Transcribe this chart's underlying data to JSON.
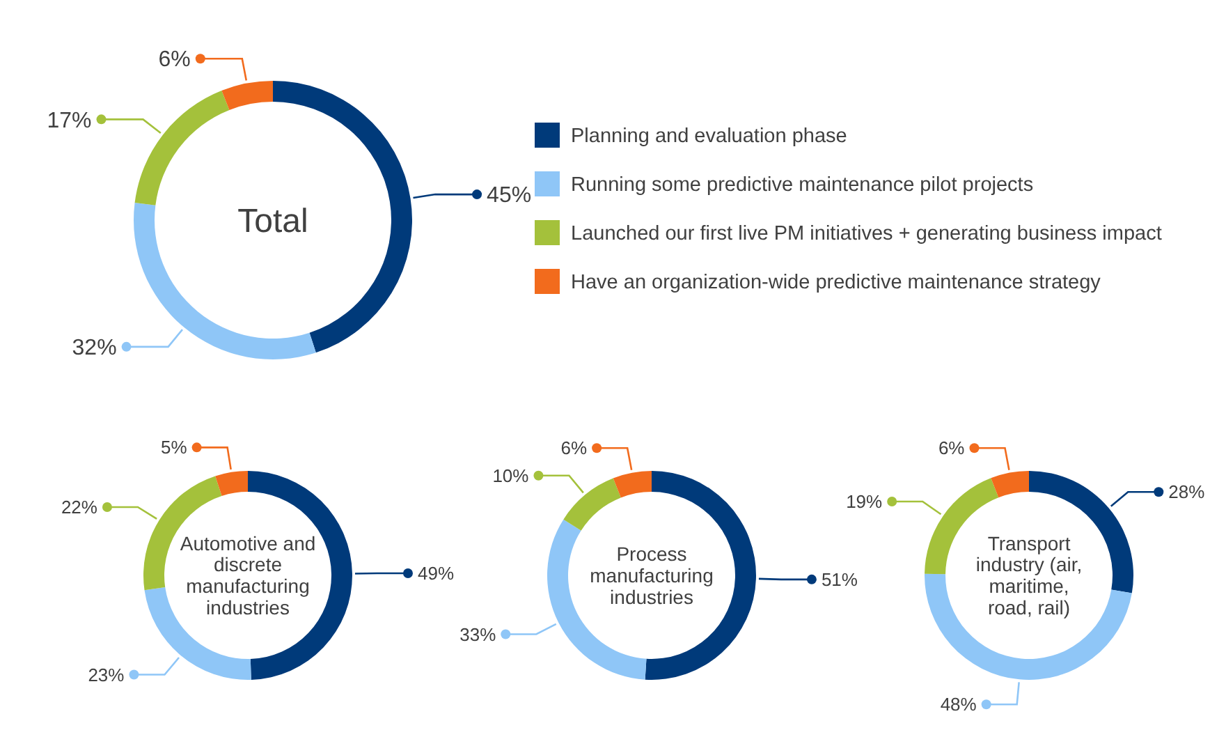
{
  "chart_data": [
    {
      "type": "donut",
      "title": "Total",
      "categories": [
        "Planning and evaluation phase",
        "Running some predictive maintenance pilot projects",
        "Launched our first live PM initiatives +  generating business impact",
        "Have an organization-wide predictive maintenance strategy"
      ],
      "values": [
        45,
        32,
        17,
        6
      ],
      "value_labels": [
        "45%",
        "32%",
        "17%",
        "6%"
      ],
      "colors": [
        "#003a7a",
        "#8fc6f7",
        "#a4c13b",
        "#f26b1d"
      ],
      "legend": "right"
    },
    {
      "type": "donut",
      "title": "Automotive and discrete manufacturing industries",
      "categories": [
        null,
        null,
        null,
        null
      ],
      "values": [
        49,
        23,
        22,
        5
      ],
      "value_labels": [
        "49%",
        "23%",
        "22%",
        "5%"
      ],
      "colors": [
        "#003a7a",
        "#8fc6f7",
        "#a4c13b",
        "#f26b1d"
      ]
    },
    {
      "type": "donut",
      "title": "Process manufacturing industries",
      "categories": [
        null,
        null,
        null,
        null
      ],
      "values": [
        51,
        33,
        10,
        6
      ],
      "value_labels": [
        "51%",
        "33%",
        "10%",
        "6%"
      ],
      "colors": [
        "#003a7a",
        "#8fc6f7",
        "#a4c13b",
        "#f26b1d"
      ]
    },
    {
      "type": "donut",
      "title": "Transport industry (air, maritime, road, rail)",
      "categories": [
        null,
        null,
        null,
        null
      ],
      "values": [
        28,
        48,
        19,
        6
      ],
      "value_labels": [
        "28%",
        "48%",
        "19%",
        "6%"
      ],
      "colors": [
        "#003a7a",
        "#8fc6f7",
        "#a4c13b",
        "#f26b1d"
      ]
    }
  ]
}
